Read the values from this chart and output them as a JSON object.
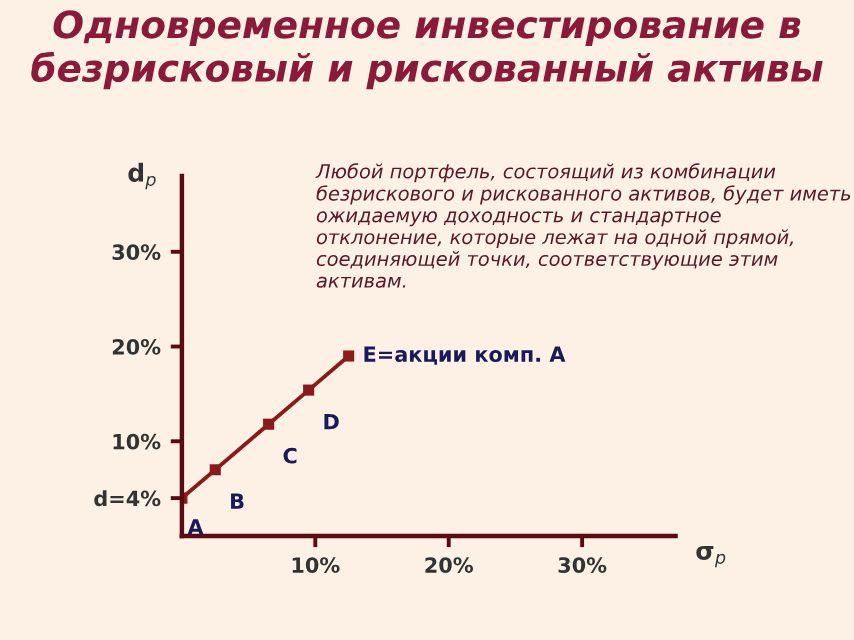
{
  "chart_data": {
    "type": "line",
    "title": "Одновременное инвестирование в безрисковый и рискованный активы",
    "xlabel": "σ$_{p}$",
    "ylabel": "d$_{p}$",
    "x": [
      0,
      2.5,
      6.5,
      9.5,
      12.5
    ],
    "series": [
      {
        "color": "#8b1a1a",
        "values": [
          4,
          7,
          11.8,
          15.4,
          19
        ]
      }
    ],
    "xlim": [
      0,
      37
    ],
    "ylim": [
      0,
      38
    ],
    "xticks": [
      {
        "value": 10,
        "label": "10%"
      },
      {
        "value": 20,
        "label": "20%"
      },
      {
        "value": 30,
        "label": "30%"
      }
    ],
    "yticks": [
      {
        "value": 4,
        "label": "d=4%"
      },
      {
        "value": 10,
        "label": "10%"
      },
      {
        "value": 20,
        "label": "20%"
      },
      {
        "value": 30,
        "label": "30%"
      }
    ],
    "marker": "square",
    "line_style": "solid",
    "grid": false,
    "legend": false,
    "annotations": [
      "Любой портфель, состоящий из комбинации безрискового и рискованного активов, будет иметь ожидаемую доходность и стандартное отклонение, которые лежат на одной прямой, соединяющей точки, соответствующие этим активам.",
      {
        "text": "A",
        "x": 0,
        "y": 4
      },
      {
        "text": "B",
        "x": 2.5,
        "y": 7
      },
      {
        "text": "C",
        "x": 6.5,
        "y": 11.8
      },
      {
        "text": "D",
        "x": 9.5,
        "y": 15.4
      },
      {
        "text": "E=акции комп. А",
        "x": 12.5,
        "y": 19
      }
    ]
  }
}
